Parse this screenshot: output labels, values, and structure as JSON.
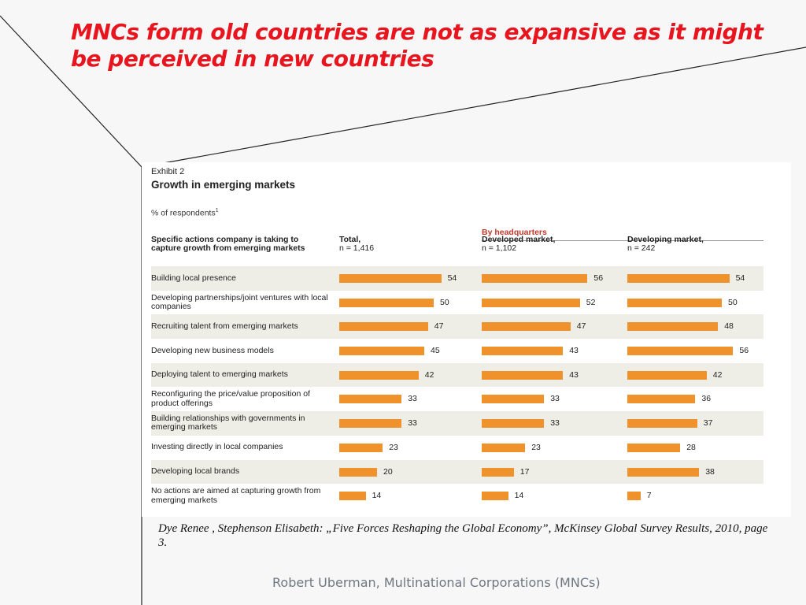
{
  "slide": {
    "title": "MNCs form old countries are not as expansive as it might be perceived in new countries",
    "citation": "Dye Renee , Stephenson Elisabeth: „Five Forces Reshaping the Global Economy”, McKinsey Global Survey Results, 2010, page 3.",
    "footer": "Robert Uberman, Multinational Corporations (MNCs)"
  },
  "exhibit": {
    "label": "Exhibit 2",
    "title": "Growth in emerging markets",
    "subtitle": "% of respondents",
    "subtitle_note": "1",
    "group_header": "By headquarters",
    "row_header": "Specific actions company is taking to capture growth from emerging markets",
    "colors": {
      "bar": "#f0922c",
      "shade": "#eeeee6",
      "group_header": "#c0392b"
    }
  },
  "chart_data": {
    "type": "bar",
    "orientation": "horizontal",
    "title": "Growth in emerging markets",
    "categories": [
      "Building local presence",
      "Developing partnerships/joint ventures with local companies",
      "Recruiting talent from emerging markets",
      "Developing new business models",
      "Deploying talent to emerging markets",
      "Reconfiguring the price/value proposition of product offerings",
      "Building relationships with governments in emerging markets",
      "Investing directly in local companies",
      "Developing local brands",
      "No actions are aimed at capturing growth from emerging markets"
    ],
    "series": [
      {
        "name": "Total,",
        "n": "n = 1,416",
        "values": [
          54,
          50,
          47,
          45,
          42,
          33,
          33,
          23,
          20,
          14
        ]
      },
      {
        "name": "Developed market,",
        "n": "n = 1,102",
        "values": [
          56,
          52,
          47,
          43,
          43,
          33,
          33,
          23,
          17,
          14
        ]
      },
      {
        "name": "Developing market,",
        "n": "n = 242",
        "values": [
          54,
          50,
          48,
          56,
          42,
          36,
          37,
          28,
          38,
          7
        ]
      }
    ],
    "xlim": [
      0,
      60
    ],
    "grid": false,
    "legend": "none"
  }
}
